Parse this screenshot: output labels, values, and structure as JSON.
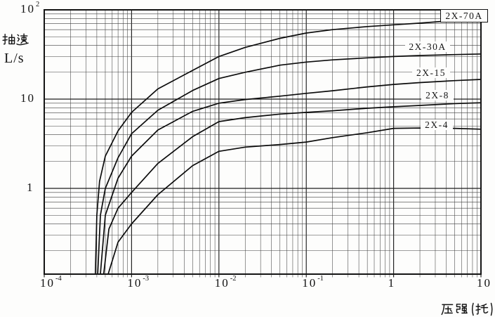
{
  "figure": {
    "y_axis": {
      "title_cn": "抽速",
      "title_unit": "L/s",
      "ticks": [
        {
          "t": "10",
          "e": "2",
          "v": 100
        },
        {
          "t": "10",
          "e": "",
          "v": 10
        },
        {
          "t": "1",
          "e": "",
          "v": 1
        }
      ]
    },
    "x_axis": {
      "title_cn": "压强(托)",
      "ticks": [
        {
          "t": "10",
          "e": "-4",
          "v": 0.0001
        },
        {
          "t": "10",
          "e": "-3",
          "v": 0.001
        },
        {
          "t": "10",
          "e": "-2",
          "v": 0.01
        },
        {
          "t": "10",
          "e": "-1",
          "v": 0.1
        },
        {
          "t": "1",
          "e": "",
          "v": 1
        },
        {
          "t": "10",
          "e": "",
          "v": 10
        }
      ]
    },
    "ink_color": "#141414",
    "background_color": "#fdfdfc"
  },
  "chart_data": {
    "type": "line",
    "title": "",
    "xlabel": "压强(托)",
    "ylabel": "抽速 L/s",
    "x_scale": "log",
    "y_scale": "log",
    "xlim": [
      0.0001,
      10
    ],
    "ylim": [
      0.11,
      100
    ],
    "grid": "full log-log grid, major and minor lines",
    "legend": "inline labels on curves, top curve label boxed",
    "series": [
      {
        "name": "2X-70A",
        "boxed_label": true,
        "points": [
          [
            0.000385,
            0.11
          ],
          [
            0.0004,
            0.5
          ],
          [
            0.00043,
            1.2
          ],
          [
            0.0005,
            2.3
          ],
          [
            0.0007,
            4.4
          ],
          [
            0.001,
            7.1
          ],
          [
            0.002,
            13
          ],
          [
            0.005,
            21
          ],
          [
            0.01,
            30
          ],
          [
            0.02,
            38
          ],
          [
            0.05,
            48
          ],
          [
            0.1,
            55
          ],
          [
            0.2,
            60
          ],
          [
            0.5,
            65
          ],
          [
            1,
            68
          ],
          [
            2,
            71
          ],
          [
            5,
            76
          ],
          [
            10,
            80
          ]
        ]
      },
      {
        "name": "2X-30A",
        "boxed_label": false,
        "points": [
          [
            0.00041,
            0.11
          ],
          [
            0.00044,
            0.5
          ],
          [
            0.0005,
            1.0
          ],
          [
            0.0007,
            2.2
          ],
          [
            0.001,
            4.1
          ],
          [
            0.002,
            7.5
          ],
          [
            0.005,
            12.5
          ],
          [
            0.01,
            17
          ],
          [
            0.02,
            20
          ],
          [
            0.05,
            24
          ],
          [
            0.1,
            26
          ],
          [
            0.2,
            27.5
          ],
          [
            0.5,
            29
          ],
          [
            1,
            30
          ],
          [
            2,
            30.8
          ],
          [
            5,
            31.5
          ],
          [
            10,
            32
          ]
        ]
      },
      {
        "name": "2X-15",
        "boxed_label": false,
        "points": [
          [
            0.00044,
            0.11
          ],
          [
            0.0005,
            0.5
          ],
          [
            0.0007,
            1.3
          ],
          [
            0.001,
            2.3
          ],
          [
            0.002,
            4.5
          ],
          [
            0.005,
            7.3
          ],
          [
            0.01,
            9
          ],
          [
            0.02,
            9.9
          ],
          [
            0.05,
            10.8
          ],
          [
            0.1,
            11.6
          ],
          [
            0.2,
            12.4
          ],
          [
            0.5,
            13.7
          ],
          [
            1,
            14.6
          ],
          [
            2,
            15.3
          ],
          [
            5,
            16.1
          ],
          [
            10,
            16.6
          ]
        ]
      },
      {
        "name": "2X-8",
        "boxed_label": false,
        "points": [
          [
            0.00048,
            0.11
          ],
          [
            0.00055,
            0.35
          ],
          [
            0.0007,
            0.6
          ],
          [
            0.001,
            0.9
          ],
          [
            0.002,
            1.9
          ],
          [
            0.005,
            3.8
          ],
          [
            0.01,
            5.6
          ],
          [
            0.02,
            6.2
          ],
          [
            0.05,
            6.8
          ],
          [
            0.1,
            7.1
          ],
          [
            0.2,
            7.4
          ],
          [
            0.5,
            7.9
          ],
          [
            1,
            8.2
          ],
          [
            2,
            8.5
          ],
          [
            5,
            8.9
          ],
          [
            10,
            9.1
          ]
        ]
      },
      {
        "name": "2X-4",
        "boxed_label": false,
        "points": [
          [
            0.00054,
            0.11
          ],
          [
            0.0007,
            0.25
          ],
          [
            0.001,
            0.4
          ],
          [
            0.002,
            0.85
          ],
          [
            0.005,
            1.8
          ],
          [
            0.01,
            2.6
          ],
          [
            0.02,
            2.9
          ],
          [
            0.05,
            3.1
          ],
          [
            0.1,
            3.3
          ],
          [
            0.2,
            3.7
          ],
          [
            0.5,
            4.2
          ],
          [
            1,
            4.7
          ],
          [
            2,
            4.75
          ],
          [
            5,
            4.7
          ],
          [
            10,
            4.6
          ]
        ]
      }
    ]
  }
}
